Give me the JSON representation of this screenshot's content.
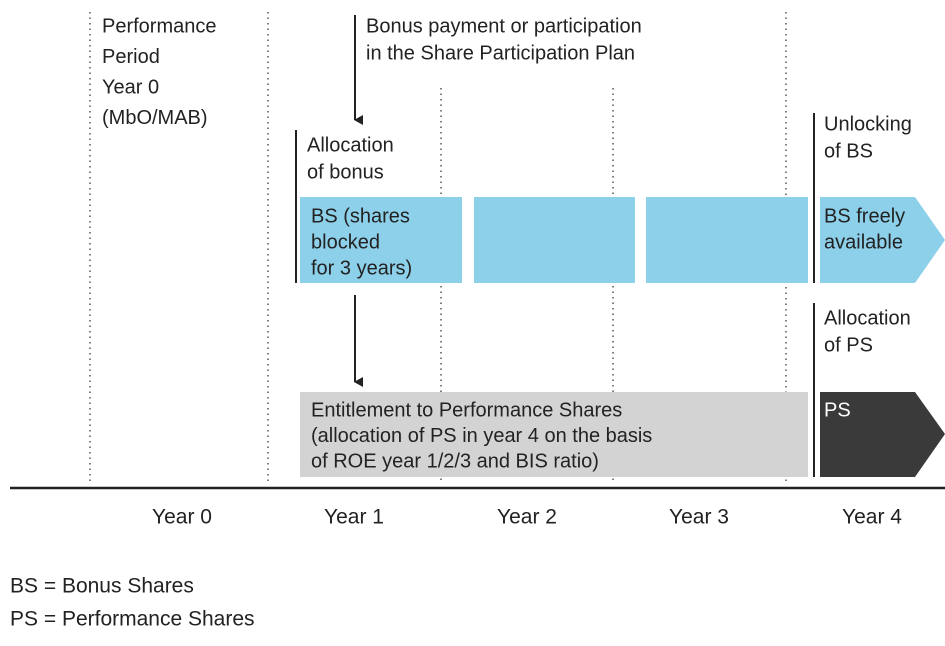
{
  "period": [
    "Performance",
    "Period",
    "Year 0",
    "(MbO/MAB)"
  ],
  "bonus_note": [
    "Bonus payment or participation",
    "in the Share Participation Plan"
  ],
  "allocation_bonus": [
    "Allocation",
    "of bonus"
  ],
  "bs_box": [
    "BS (shares",
    "blocked",
    "for 3 years)"
  ],
  "unlocking": [
    "Unlocking",
    "of BS"
  ],
  "bs_free": [
    "BS freely",
    "available"
  ],
  "allocation_ps": [
    "Allocation",
    "of PS"
  ],
  "entitlement": [
    "Entitlement to Performance Shares",
    "(allocation of PS in year 4 on the basis",
    "of ROE year 1/2/3 and BIS ratio)"
  ],
  "ps": "PS",
  "years": [
    "Year 0",
    "Year 1",
    "Year 2",
    "Year 3",
    "Year 4"
  ],
  "legend": [
    "BS = Bonus Shares",
    "PS = Performance Shares"
  ]
}
